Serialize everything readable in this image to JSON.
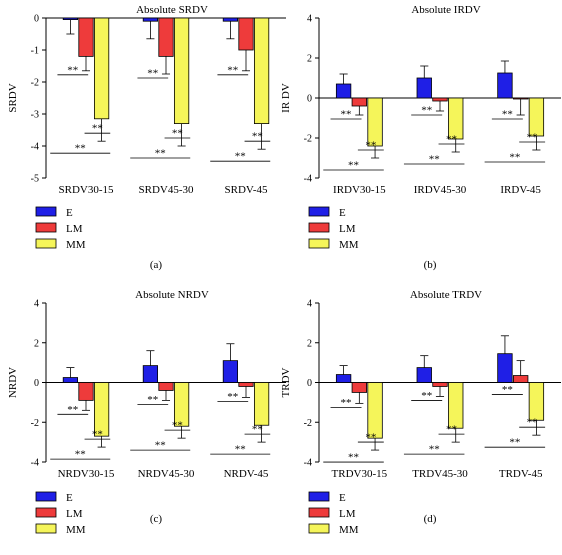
{
  "colors": {
    "E": "#1f1fe6",
    "LM": "#ee3b3b",
    "MM": "#f5f55a"
  },
  "legend": [
    "E",
    "LM",
    "MM"
  ],
  "sig_label": "**",
  "chart_data": [
    {
      "type": "bar",
      "panel": "(a)",
      "title": "Absolute SRDV",
      "ylabel": "SRDV",
      "ylim": [
        -5,
        0
      ],
      "yticks": [
        0,
        -1,
        -2,
        -3,
        -4,
        -5
      ],
      "categories": [
        "SRDV30-15",
        "SRDV45-30",
        "SRDV-45"
      ],
      "series": [
        {
          "name": "E",
          "values": [
            -0.05,
            -0.1,
            -0.1
          ],
          "errors": [
            0.45,
            0.55,
            0.55
          ]
        },
        {
          "name": "LM",
          "values": [
            -1.2,
            -1.2,
            -1.0
          ],
          "errors": [
            0.45,
            0.55,
            0.65
          ]
        },
        {
          "name": "MM",
          "values": [
            -3.15,
            -3.3,
            -3.3
          ],
          "errors": [
            0.7,
            0.7,
            0.8
          ]
        }
      ],
      "significance": [
        {
          "from": "E",
          "to": "LM",
          "label": "**"
        },
        {
          "from": "LM",
          "to": "MM",
          "label": "**"
        },
        {
          "from": "E",
          "to": "MM",
          "label": "**"
        }
      ]
    },
    {
      "type": "bar",
      "panel": "(b)",
      "title": "Absolute IRDV",
      "ylabel": "IR DV",
      "ylim": [
        -4,
        4
      ],
      "yticks": [
        4,
        2,
        0,
        -2,
        -4
      ],
      "categories": [
        "IRDV30-15",
        "IRDV45-30",
        "IRDV-45"
      ],
      "series": [
        {
          "name": "E",
          "values": [
            0.7,
            1.0,
            1.25
          ],
          "errors": [
            0.5,
            0.6,
            0.6
          ]
        },
        {
          "name": "LM",
          "values": [
            -0.4,
            -0.15,
            -0.05
          ],
          "errors": [
            0.45,
            0.5,
            0.8
          ]
        },
        {
          "name": "MM",
          "values": [
            -2.4,
            -2.05,
            -1.9
          ],
          "errors": [
            0.6,
            0.65,
            0.7
          ]
        }
      ],
      "significance": [
        {
          "from": "E",
          "to": "LM",
          "label": "**"
        },
        {
          "from": "LM",
          "to": "MM",
          "label": "**"
        },
        {
          "from": "E",
          "to": "MM",
          "label": "**"
        }
      ]
    },
    {
      "type": "bar",
      "panel": "(c)",
      "title": "Absolute NRDV",
      "ylabel": "NRDV",
      "ylim": [
        -4,
        4
      ],
      "yticks": [
        4,
        2,
        0,
        -2,
        -4
      ],
      "categories": [
        "NRDV30-15",
        "NRDV45-30",
        "NRDV-45"
      ],
      "series": [
        {
          "name": "E",
          "values": [
            0.25,
            0.85,
            1.1
          ],
          "errors": [
            0.5,
            0.75,
            0.85
          ]
        },
        {
          "name": "LM",
          "values": [
            -0.9,
            -0.4,
            -0.2
          ],
          "errors": [
            0.5,
            0.5,
            0.55
          ]
        },
        {
          "name": "MM",
          "values": [
            -2.7,
            -2.2,
            -2.15
          ],
          "errors": [
            0.55,
            0.6,
            0.85
          ]
        }
      ],
      "significance": [
        {
          "from": "E",
          "to": "LM",
          "label": "**"
        },
        {
          "from": "LM",
          "to": "MM",
          "label": "**"
        },
        {
          "from": "E",
          "to": "MM",
          "label": "**"
        }
      ]
    },
    {
      "type": "bar",
      "panel": "(d)",
      "title": "Absolute TRDV",
      "ylabel": "TRDV",
      "ylim": [
        -4,
        4
      ],
      "yticks": [
        4,
        2,
        0,
        -2,
        -4
      ],
      "categories": [
        "TRDV30-15",
        "TRDV45-30",
        "TRDV-45"
      ],
      "series": [
        {
          "name": "E",
          "values": [
            0.4,
            0.75,
            1.45
          ],
          "errors": [
            0.45,
            0.6,
            0.9
          ]
        },
        {
          "name": "LM",
          "values": [
            -0.5,
            -0.2,
            0.35
          ],
          "errors": [
            0.55,
            0.5,
            0.75
          ]
        },
        {
          "name": "MM",
          "values": [
            -2.8,
            -2.3,
            -1.9
          ],
          "errors": [
            0.6,
            0.7,
            0.75
          ]
        }
      ],
      "significance": [
        {
          "from": "E",
          "to": "LM",
          "label": "**"
        },
        {
          "from": "LM",
          "to": "MM",
          "label": "**"
        },
        {
          "from": "E",
          "to": "MM",
          "label": "**"
        }
      ]
    }
  ]
}
